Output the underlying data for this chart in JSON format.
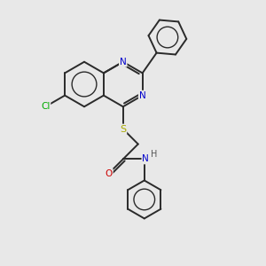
{
  "background_color": "#e8e8e8",
  "bond_color": "#2a2a2a",
  "atom_colors": {
    "N": "#0000cc",
    "O": "#cc0000",
    "S": "#aaaa00",
    "Cl": "#00aa00",
    "H": "#555555",
    "C": "#2a2a2a"
  },
  "figsize": [
    3.0,
    3.0
  ],
  "dpi": 100
}
